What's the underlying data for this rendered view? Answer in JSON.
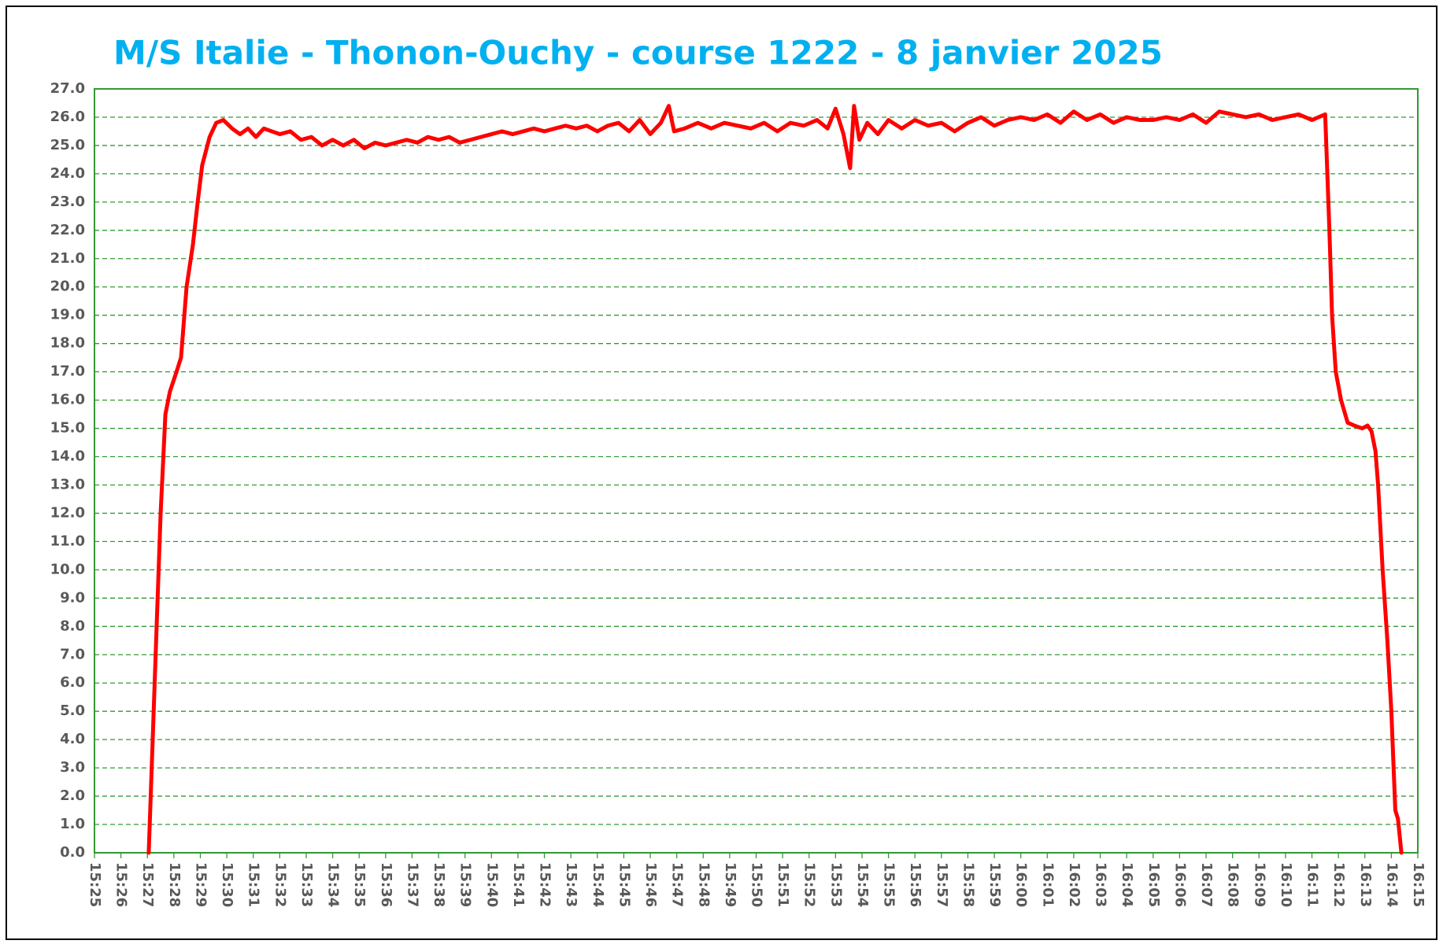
{
  "chart_data": {
    "type": "line",
    "title": "M/S Italie - Thonon-Ouchy - course 1222 - 8 janvier 2025",
    "x": [
      927.05,
      927.2,
      927.33,
      927.5,
      927.68,
      927.85,
      928.1,
      928.27,
      928.48,
      928.72,
      928.9,
      929.07,
      929.35,
      929.6,
      929.87,
      930.2,
      930.5,
      930.8,
      931.1,
      931.4,
      931.7,
      932.0,
      932.4,
      932.8,
      933.2,
      933.6,
      934.0,
      934.4,
      934.8,
      935.2,
      935.6,
      936.0,
      936.4,
      936.8,
      937.2,
      937.6,
      938.0,
      938.4,
      938.8,
      939.2,
      939.6,
      940.0,
      940.4,
      940.8,
      941.2,
      941.6,
      942.0,
      942.4,
      942.8,
      943.2,
      943.6,
      944.0,
      944.4,
      944.8,
      945.2,
      945.6,
      946.0,
      946.4,
      946.7,
      946.9,
      947.3,
      947.8,
      948.3,
      948.8,
      949.3,
      949.8,
      950.3,
      950.8,
      951.3,
      951.8,
      952.3,
      952.7,
      953.0,
      953.3,
      953.55,
      953.7,
      953.9,
      954.2,
      954.6,
      955.0,
      955.5,
      956.0,
      956.5,
      957.0,
      957.5,
      958.0,
      958.5,
      959.0,
      959.5,
      960.0,
      960.5,
      961.0,
      961.5,
      962.0,
      962.5,
      963.0,
      963.5,
      964.0,
      964.5,
      965.0,
      965.5,
      966.0,
      966.5,
      967.0,
      967.5,
      968.0,
      968.5,
      969.0,
      969.5,
      970.0,
      970.5,
      971.0,
      971.5,
      971.66,
      971.76,
      971.9,
      972.1,
      972.35,
      972.6,
      972.9,
      973.1,
      973.25,
      973.4,
      973.5,
      973.67,
      973.85,
      974.0,
      974.15,
      974.25,
      974.38
    ],
    "series": [
      {
        "color": "#ff0000",
        "values": [
          0,
          4,
          7.5,
          12,
          15.5,
          16.3,
          17,
          17.5,
          20,
          21.5,
          23,
          24.3,
          25.3,
          25.8,
          25.9,
          25.6,
          25.4,
          25.6,
          25.3,
          25.6,
          25.5,
          25.4,
          25.5,
          25.2,
          25.3,
          25.0,
          25.2,
          25.0,
          25.2,
          24.9,
          25.1,
          25.0,
          25.1,
          25.2,
          25.1,
          25.3,
          25.2,
          25.3,
          25.1,
          25.2,
          25.3,
          25.4,
          25.5,
          25.4,
          25.5,
          25.6,
          25.5,
          25.6,
          25.7,
          25.6,
          25.7,
          25.5,
          25.7,
          25.8,
          25.5,
          25.9,
          25.4,
          25.8,
          26.4,
          25.5,
          25.6,
          25.8,
          25.6,
          25.8,
          25.7,
          25.6,
          25.8,
          25.5,
          25.8,
          25.7,
          25.9,
          25.6,
          26.3,
          25.4,
          24.2,
          26.4,
          25.2,
          25.8,
          25.4,
          25.9,
          25.6,
          25.9,
          25.7,
          25.8,
          25.5,
          25.8,
          26.0,
          25.7,
          25.9,
          26.0,
          25.9,
          26.1,
          25.8,
          26.2,
          25.9,
          26.1,
          25.8,
          26.0,
          25.9,
          25.9,
          26.0,
          25.9,
          26.1,
          25.8,
          26.2,
          26.1,
          26.0,
          26.1,
          25.9,
          26.0,
          26.1,
          25.9,
          26.1,
          22,
          19,
          17,
          16,
          15.2,
          15.1,
          15.0,
          15.1,
          14.9,
          14.2,
          13,
          10,
          7.5,
          5,
          1.5,
          1.2,
          0
        ]
      }
    ],
    "xlim": [
      925,
      975
    ],
    "xticks": [
      {
        "value": 925,
        "label": "15:25"
      },
      {
        "value": 926,
        "label": "15:26"
      },
      {
        "value": 927,
        "label": "15:27"
      },
      {
        "value": 928,
        "label": "15:28"
      },
      {
        "value": 929,
        "label": "15:29"
      },
      {
        "value": 930,
        "label": "15:30"
      },
      {
        "value": 931,
        "label": "15:31"
      },
      {
        "value": 932,
        "label": "15:32"
      },
      {
        "value": 933,
        "label": "15:33"
      },
      {
        "value": 934,
        "label": "15:34"
      },
      {
        "value": 935,
        "label": "15:35"
      },
      {
        "value": 936,
        "label": "15:36"
      },
      {
        "value": 937,
        "label": "15:37"
      },
      {
        "value": 938,
        "label": "15:38"
      },
      {
        "value": 939,
        "label": "15:39"
      },
      {
        "value": 940,
        "label": "15:40"
      },
      {
        "value": 941,
        "label": "15:41"
      },
      {
        "value": 942,
        "label": "15:42"
      },
      {
        "value": 943,
        "label": "15:43"
      },
      {
        "value": 944,
        "label": "15:44"
      },
      {
        "value": 945,
        "label": "15:45"
      },
      {
        "value": 946,
        "label": "15:46"
      },
      {
        "value": 947,
        "label": "15:47"
      },
      {
        "value": 948,
        "label": "15:48"
      },
      {
        "value": 949,
        "label": "15:49"
      },
      {
        "value": 950,
        "label": "15:50"
      },
      {
        "value": 951,
        "label": "15:51"
      },
      {
        "value": 952,
        "label": "15:52"
      },
      {
        "value": 953,
        "label": "15:53"
      },
      {
        "value": 954,
        "label": "15:54"
      },
      {
        "value": 955,
        "label": "15:55"
      },
      {
        "value": 956,
        "label": "15:56"
      },
      {
        "value": 957,
        "label": "15:57"
      },
      {
        "value": 958,
        "label": "15:58"
      },
      {
        "value": 959,
        "label": "15:59"
      },
      {
        "value": 960,
        "label": "16:00"
      },
      {
        "value": 961,
        "label": "16:01"
      },
      {
        "value": 962,
        "label": "16:02"
      },
      {
        "value": 963,
        "label": "16:03"
      },
      {
        "value": 964,
        "label": "16:04"
      },
      {
        "value": 965,
        "label": "16:05"
      },
      {
        "value": 966,
        "label": "16:06"
      },
      {
        "value": 967,
        "label": "16:07"
      },
      {
        "value": 968,
        "label": "16:08"
      },
      {
        "value": 969,
        "label": "16:09"
      },
      {
        "value": 970,
        "label": "16:10"
      },
      {
        "value": 971,
        "label": "16:11"
      },
      {
        "value": 972,
        "label": "16:12"
      },
      {
        "value": 973,
        "label": "16:13"
      },
      {
        "value": 974,
        "label": "16:14"
      },
      {
        "value": 975,
        "label": "16:15"
      }
    ],
    "ylim": [
      0,
      27
    ],
    "yticks": [
      {
        "value": 0,
        "label": "0.0"
      },
      {
        "value": 1,
        "label": "1.0"
      },
      {
        "value": 2,
        "label": "2.0"
      },
      {
        "value": 3,
        "label": "3.0"
      },
      {
        "value": 4,
        "label": "4.0"
      },
      {
        "value": 5,
        "label": "5.0"
      },
      {
        "value": 6,
        "label": "6.0"
      },
      {
        "value": 7,
        "label": "7.0"
      },
      {
        "value": 8,
        "label": "8.0"
      },
      {
        "value": 9,
        "label": "9.0"
      },
      {
        "value": 10,
        "label": "10.0"
      },
      {
        "value": 11,
        "label": "11.0"
      },
      {
        "value": 12,
        "label": "12.0"
      },
      {
        "value": 13,
        "label": "13.0"
      },
      {
        "value": 14,
        "label": "14.0"
      },
      {
        "value": 15,
        "label": "15.0"
      },
      {
        "value": 16,
        "label": "16.0"
      },
      {
        "value": 17,
        "label": "17.0"
      },
      {
        "value": 18,
        "label": "18.0"
      },
      {
        "value": 19,
        "label": "19.0"
      },
      {
        "value": 20,
        "label": "20.0"
      },
      {
        "value": 21,
        "label": "21.0"
      },
      {
        "value": 22,
        "label": "22.0"
      },
      {
        "value": 23,
        "label": "23.0"
      },
      {
        "value": 24,
        "label": "24.0"
      },
      {
        "value": 25,
        "label": "25.0"
      },
      {
        "value": 26,
        "label": "26.0"
      },
      {
        "value": 27,
        "label": "27.0"
      }
    ],
    "grid": true
  }
}
